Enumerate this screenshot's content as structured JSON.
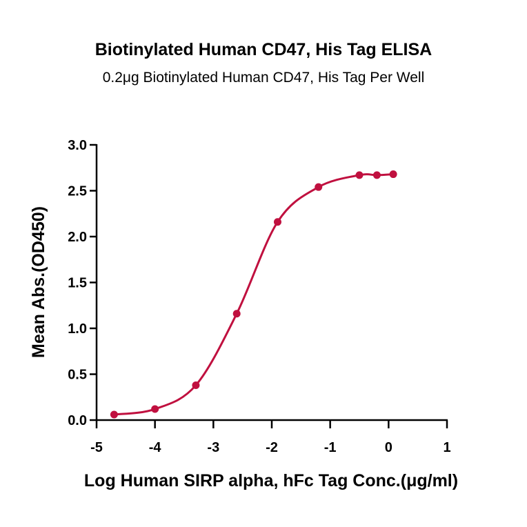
{
  "chart_data": {
    "type": "scatter",
    "title": "Biotinylated Human CD47, His Tag ELISA",
    "subtitle": "0.2μg Biotinylated Human CD47, His Tag Per Well",
    "xlabel": "Log Human SIRP alpha, hFc Tag Conc.(μg/ml)",
    "ylabel": "Mean Abs.(OD450)",
    "xlim": [
      -5,
      1
    ],
    "ylim": [
      0,
      3
    ],
    "xticks": [
      "-5",
      "-4",
      "-3",
      "-2",
      "-1",
      "0",
      "1"
    ],
    "yticks": [
      "0.0",
      "0.5",
      "1.0",
      "1.5",
      "2.0",
      "2.5",
      "3.0"
    ],
    "grid": false,
    "series": [
      {
        "x": [
          -4.7,
          -4.0,
          -3.3,
          -2.6,
          -1.9,
          -1.2,
          -0.5,
          -0.2,
          0.08
        ],
        "y": [
          0.06,
          0.12,
          0.38,
          1.16,
          2.16,
          2.54,
          2.67,
          2.67,
          2.68
        ],
        "color": "#c0103f",
        "fit": "4PL"
      }
    ]
  }
}
